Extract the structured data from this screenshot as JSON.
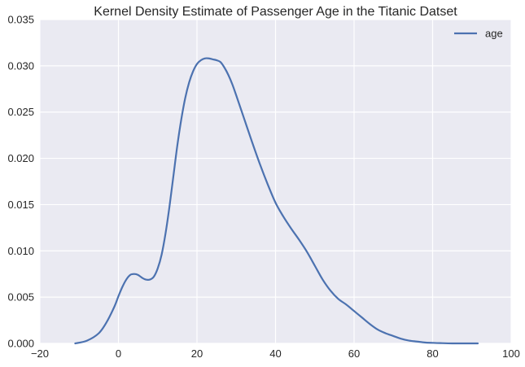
{
  "chart_data": {
    "type": "line",
    "title": "Kernel Density Estimate of Passenger Age in the Titanic Datset",
    "xlabel": "",
    "ylabel": "",
    "xlim": [
      -20,
      100
    ],
    "ylim": [
      0,
      0.035
    ],
    "xticks": [
      -20,
      0,
      20,
      40,
      60,
      80,
      100
    ],
    "yticks": [
      0.0,
      0.005,
      0.01,
      0.015,
      0.02,
      0.025,
      0.03,
      0.035
    ],
    "xtick_labels": [
      "−20",
      "0",
      "20",
      "40",
      "60",
      "80",
      "100"
    ],
    "ytick_labels": [
      "0.000",
      "0.005",
      "0.010",
      "0.015",
      "0.020",
      "0.025",
      "0.030",
      "0.035"
    ],
    "grid": true,
    "legend": {
      "placement": "top-right",
      "entries": [
        "age"
      ]
    },
    "series": [
      {
        "name": "age",
        "color": "#4c72b0",
        "x": [
          -11,
          -8,
          -5,
          -3,
          -1,
          0,
          1,
          2,
          3,
          4,
          5,
          6,
          7,
          8,
          9,
          10,
          11,
          12,
          13,
          14,
          15,
          16,
          17,
          18,
          19,
          20,
          21,
          22,
          23,
          24,
          25,
          26,
          27,
          28,
          29,
          30,
          32,
          34,
          36,
          38,
          40,
          42,
          44,
          46,
          48,
          50,
          52,
          54,
          56,
          58,
          60,
          62,
          64,
          66,
          68,
          70,
          72,
          74,
          76,
          78,
          80,
          82,
          85,
          88,
          91.5
        ],
        "y": [
          0.0,
          0.0003,
          0.0011,
          0.0023,
          0.004,
          0.0051,
          0.0061,
          0.0069,
          0.0074,
          0.0075,
          0.0074,
          0.0071,
          0.0069,
          0.0069,
          0.0072,
          0.0081,
          0.0096,
          0.0119,
          0.0148,
          0.0181,
          0.0214,
          0.0242,
          0.0265,
          0.0282,
          0.0294,
          0.0302,
          0.0306,
          0.0308,
          0.0308,
          0.0307,
          0.0306,
          0.0304,
          0.0298,
          0.029,
          0.028,
          0.0268,
          0.0243,
          0.0218,
          0.0194,
          0.0172,
          0.0152,
          0.0137,
          0.0124,
          0.0112,
          0.0099,
          0.0084,
          0.0069,
          0.0057,
          0.0048,
          0.0042,
          0.0035,
          0.0028,
          0.0021,
          0.0015,
          0.0011,
          0.0008,
          0.0005,
          0.0003,
          0.0002,
          0.0001,
          6e-05,
          3e-05,
          0.0,
          0.0,
          0.0
        ]
      }
    ]
  }
}
